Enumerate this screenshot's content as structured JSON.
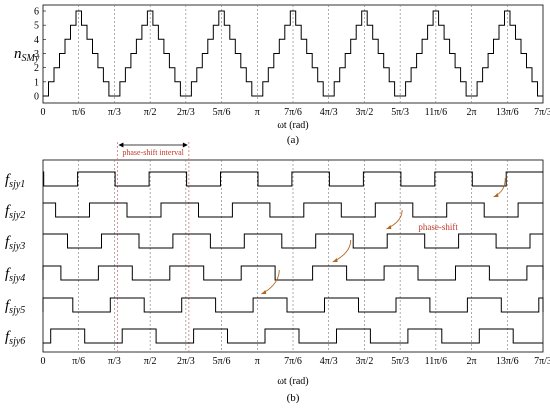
{
  "chart_data": [
    {
      "type": "line",
      "panel": "(a)",
      "ylabel_main": "n",
      "ylabel_sub": "SMy",
      "xlabel": "ωt (rad)",
      "caption": "(a)",
      "ylim": [
        0,
        6
      ],
      "yticks": [
        "0",
        "1",
        "2",
        "3",
        "4",
        "5",
        "6"
      ],
      "xticks": [
        "0",
        "π/6",
        "π/3",
        "π/2",
        "2π/3",
        "5π/6",
        "π",
        "7π/6",
        "4π/3",
        "3π/2",
        "5π/3",
        "11π/6",
        "2π",
        "13π/6",
        "7π/3"
      ],
      "x_range_rad_over_pi": [
        0,
        2.3333
      ],
      "series": [
        {
          "description": "staircase waveform, period π/3 (peak 6 at π/6 + kπ/3, valley 0 at kπ/3)",
          "period_rad_over_pi": 0.3333,
          "levels": [
            0,
            1,
            2,
            3,
            4,
            5,
            6,
            5,
            4,
            3,
            2,
            1,
            0
          ]
        }
      ]
    },
    {
      "type": "line",
      "panel": "(b)",
      "xlabel": "ωt (rad)",
      "caption": "(b)",
      "xticks": [
        "0",
        "π/6",
        "π/3",
        "π/2",
        "2π/3",
        "5π/6",
        "π",
        "7π/6",
        "4π/3",
        "3π/2",
        "5π/3",
        "11π/6",
        "2π",
        "13π/6",
        "7π/3"
      ],
      "annotations": {
        "interval": "phase-shift interval",
        "shift": "phase-shift"
      },
      "series": [
        {
          "label_main": "f",
          "label_sub": "sjy1",
          "pattern": "high-long"
        },
        {
          "label_main": "f",
          "label_sub": "sjy2",
          "pattern": "high-long"
        },
        {
          "label_main": "f",
          "label_sub": "sjy3",
          "pattern": "high-long"
        },
        {
          "label_main": "f",
          "label_sub": "sjy4",
          "pattern": "short"
        },
        {
          "label_main": "f",
          "label_sub": "sjy5",
          "pattern": "short"
        },
        {
          "label_main": "f",
          "label_sub": "sjy6",
          "pattern": "short"
        }
      ]
    }
  ],
  "colors": {
    "trace": "#000000",
    "gridline": "#777777",
    "interval_line": "#d9707a",
    "annotation": "#c0392b",
    "arrow": "#b5651d"
  }
}
